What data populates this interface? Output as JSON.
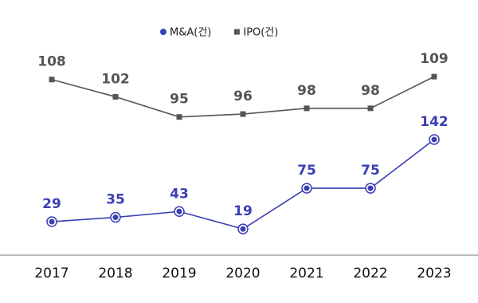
{
  "chart_data": {
    "type": "line",
    "categories": [
      "2017",
      "2018",
      "2019",
      "2020",
      "2021",
      "2022",
      "2023"
    ],
    "series": [
      {
        "name": "M&A(건)",
        "color": "#3a3fb3",
        "marker": "circle",
        "values": [
          29,
          35,
          43,
          19,
          75,
          75,
          142
        ]
      },
      {
        "name": "IPO(건)",
        "color": "#555555",
        "marker": "square",
        "axis": "y2",
        "values": [
          108,
          102,
          95,
          96,
          98,
          98,
          109
        ]
      }
    ],
    "ylim": [
      -17,
      268
    ],
    "y2lim": [
      47,
      119
    ],
    "legend": "top"
  }
}
